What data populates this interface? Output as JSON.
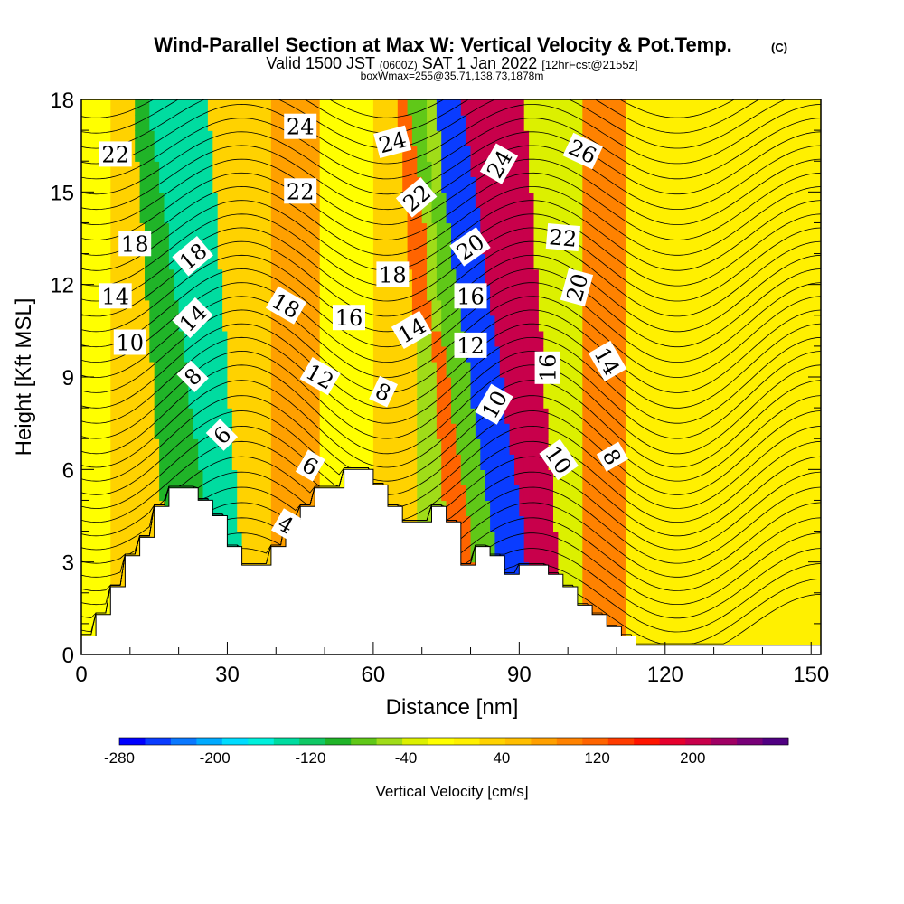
{
  "chart_data": {
    "type": "heatmap",
    "title": "Wind-Parallel Section at Max W: Vertical Velocity & Pot.Temp.",
    "copyright": "(C)",
    "subtitle": {
      "valid_prefix": "Valid 1500 JST",
      "utc": "(0600Z)",
      "date": "SAT 1 Jan 2022",
      "forecast": "[12hrFcst@2155z]"
    },
    "box_info": "boxWmax=255@35.71,138.73,1878m",
    "xlabel": "Distance [nm]",
    "ylabel": "Height [Kft MSL]",
    "xlim": [
      0,
      152
    ],
    "ylim": [
      0,
      18
    ],
    "x_ticks": [
      0,
      30,
      60,
      90,
      120,
      150
    ],
    "y_ticks": [
      0,
      3,
      6,
      9,
      12,
      15,
      18
    ],
    "colorbar": {
      "label": "Vertical Velocity [cm/s]",
      "range": [
        -280,
        280
      ],
      "tick_labels": [
        "-280",
        "-200",
        "-120",
        "-40",
        "40",
        "120",
        "200"
      ],
      "tick_values": [
        -280,
        -200,
        -120,
        -40,
        40,
        120,
        200
      ],
      "colors": [
        "#0000ff",
        "#0a3cff",
        "#0a78ff",
        "#00aaff",
        "#00dcff",
        "#00f0dc",
        "#00dca0",
        "#10c864",
        "#20b428",
        "#60c818",
        "#a0dc18",
        "#dcf000",
        "#ffff00",
        "#fff000",
        "#ffd200",
        "#ffbe00",
        "#ffa000",
        "#ff8200",
        "#ff6400",
        "#ff3c00",
        "#ff1400",
        "#e6002d",
        "#c8004b",
        "#a00064",
        "#780078",
        "#500082"
      ]
    },
    "terrain": {
      "description_units": "x in nm, height in Kft",
      "points": [
        [
          0,
          0.6
        ],
        [
          3,
          0.6
        ],
        [
          3,
          1.3
        ],
        [
          6,
          1.3
        ],
        [
          6,
          2.2
        ],
        [
          9,
          2.2
        ],
        [
          9,
          3.2
        ],
        [
          12,
          3.2
        ],
        [
          12,
          3.8
        ],
        [
          15,
          3.8
        ],
        [
          15,
          4.8
        ],
        [
          18,
          4.8
        ],
        [
          18,
          5.4
        ],
        [
          24,
          5.4
        ],
        [
          24,
          5.0
        ],
        [
          27,
          5.0
        ],
        [
          27,
          4.5
        ],
        [
          30,
          4.5
        ],
        [
          30,
          3.5
        ],
        [
          33,
          3.5
        ],
        [
          33,
          2.9
        ],
        [
          39,
          2.9
        ],
        [
          39,
          3.5
        ],
        [
          42,
          3.5
        ],
        [
          42,
          4.4
        ],
        [
          45,
          4.4
        ],
        [
          45,
          4.8
        ],
        [
          48,
          4.8
        ],
        [
          48,
          5.4
        ],
        [
          54,
          5.4
        ],
        [
          54,
          6.0
        ],
        [
          60,
          6.0
        ],
        [
          60,
          5.5
        ],
        [
          63,
          5.5
        ],
        [
          63,
          4.8
        ],
        [
          66,
          4.8
        ],
        [
          66,
          4.3
        ],
        [
          72,
          4.3
        ],
        [
          72,
          4.8
        ],
        [
          75,
          4.8
        ],
        [
          75,
          4.3
        ],
        [
          78,
          4.3
        ],
        [
          78,
          2.9
        ],
        [
          81,
          2.9
        ],
        [
          81,
          3.5
        ],
        [
          84,
          3.5
        ],
        [
          84,
          3.2
        ],
        [
          87,
          3.2
        ],
        [
          87,
          2.6
        ],
        [
          90,
          2.6
        ],
        [
          90,
          2.9
        ],
        [
          96,
          2.9
        ],
        [
          96,
          2.6
        ],
        [
          99,
          2.6
        ],
        [
          99,
          2.2
        ],
        [
          102,
          2.2
        ],
        [
          102,
          1.6
        ],
        [
          105,
          1.6
        ],
        [
          105,
          1.3
        ],
        [
          108,
          1.3
        ],
        [
          108,
          0.9
        ],
        [
          111,
          0.9
        ],
        [
          111,
          0.6
        ],
        [
          114,
          0.6
        ],
        [
          114,
          0.3
        ],
        [
          152,
          0.3
        ]
      ]
    },
    "vertical_velocity_bands": [
      {
        "x": 2,
        "w_cm_s": -20
      },
      {
        "x": 10,
        "w_cm_s": 40
      },
      {
        "x": 22,
        "w_cm_s": -100
      },
      {
        "x": 27,
        "w_cm_s": -130
      },
      {
        "x": 36,
        "w_cm_s": 40
      },
      {
        "x": 42,
        "w_cm_s": 80
      },
      {
        "x": 55,
        "w_cm_s": -20
      },
      {
        "x": 65,
        "w_cm_s": 40
      },
      {
        "x": 72,
        "w_cm_s": -60
      },
      {
        "x": 76,
        "w_cm_s": 120
      },
      {
        "x": 80,
        "w_cm_s": -80
      },
      {
        "x": 85,
        "w_cm_s": -250
      },
      {
        "x": 93,
        "w_cm_s": 200
      },
      {
        "x": 100,
        "w_cm_s": -40
      },
      {
        "x": 106,
        "w_cm_s": 100
      },
      {
        "x": 118,
        "w_cm_s": 20
      },
      {
        "x": 140,
        "w_cm_s": 20
      }
    ],
    "theta_contour_labels": [
      {
        "text": "22",
        "x": 7,
        "y": 16.2,
        "rot": 0
      },
      {
        "text": "24",
        "x": 45,
        "y": 17.1,
        "rot": 0
      },
      {
        "text": "24",
        "x": 64,
        "y": 16.6,
        "rot": 15
      },
      {
        "text": "24",
        "x": 86,
        "y": 15.9,
        "rot": 60
      },
      {
        "text": "26",
        "x": 103,
        "y": 16.3,
        "rot": -25
      },
      {
        "text": "22",
        "x": 45,
        "y": 15.0,
        "rot": 0
      },
      {
        "text": "22",
        "x": 69,
        "y": 14.8,
        "rot": 40
      },
      {
        "text": "22",
        "x": 99,
        "y": 13.5,
        "rot": -5
      },
      {
        "text": "18",
        "x": 11,
        "y": 13.3,
        "rot": 0
      },
      {
        "text": "18",
        "x": 23,
        "y": 12.9,
        "rot": 40
      },
      {
        "text": "18",
        "x": 64,
        "y": 12.3,
        "rot": 0
      },
      {
        "text": "20",
        "x": 80,
        "y": 13.2,
        "rot": 35
      },
      {
        "text": "14",
        "x": 7,
        "y": 11.6,
        "rot": 0
      },
      {
        "text": "14",
        "x": 23,
        "y": 10.9,
        "rot": 45
      },
      {
        "text": "18",
        "x": 42,
        "y": 11.3,
        "rot": -30
      },
      {
        "text": "16",
        "x": 55,
        "y": 10.9,
        "rot": 0
      },
      {
        "text": "16",
        "x": 80,
        "y": 11.6,
        "rot": 0
      },
      {
        "text": "20",
        "x": 102,
        "y": 11.9,
        "rot": 75
      },
      {
        "text": "10",
        "x": 10,
        "y": 10.1,
        "rot": 0
      },
      {
        "text": "14",
        "x": 68,
        "y": 10.5,
        "rot": 30
      },
      {
        "text": "12",
        "x": 80,
        "y": 10.0,
        "rot": 0
      },
      {
        "text": "8",
        "x": 23,
        "y": 9.0,
        "rot": 45
      },
      {
        "text": "12",
        "x": 49,
        "y": 9.0,
        "rot": -30
      },
      {
        "text": "16",
        "x": 96,
        "y": 9.3,
        "rot": 90
      },
      {
        "text": "14",
        "x": 108,
        "y": 9.5,
        "rot": -60
      },
      {
        "text": "8",
        "x": 62,
        "y": 8.5,
        "rot": -25
      },
      {
        "text": "10",
        "x": 85,
        "y": 8.1,
        "rot": 60
      },
      {
        "text": "6",
        "x": 29,
        "y": 7.1,
        "rot": 45
      },
      {
        "text": "6",
        "x": 47,
        "y": 6.1,
        "rot": -30
      },
      {
        "text": "10",
        "x": 98,
        "y": 6.3,
        "rot": -55
      },
      {
        "text": "8",
        "x": 109,
        "y": 6.4,
        "rot": -60
      },
      {
        "text": "4",
        "x": 42,
        "y": 4.2,
        "rot": -30
      }
    ]
  }
}
